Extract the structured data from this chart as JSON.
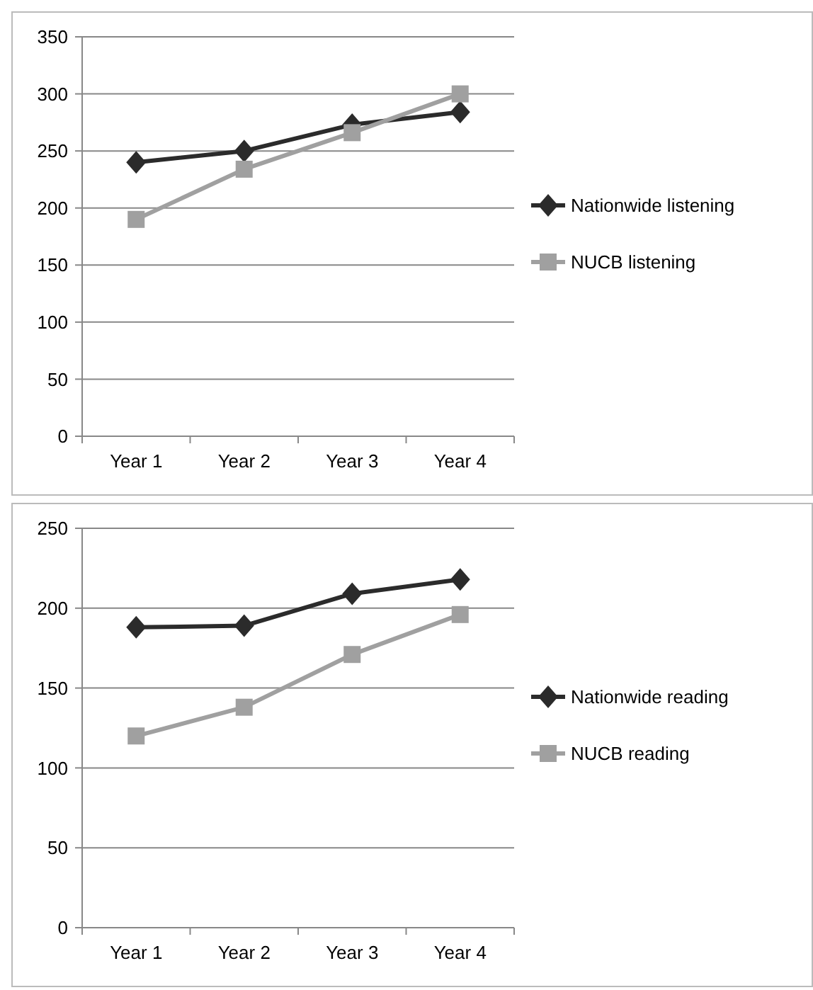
{
  "chart_data": [
    {
      "type": "line",
      "categories": [
        "Year 1",
        "Year 2",
        "Year 3",
        "Year 4"
      ],
      "ylim": [
        0,
        350
      ],
      "yticks": [
        0,
        50,
        100,
        150,
        200,
        250,
        300,
        350
      ],
      "grid": "y",
      "legend": "right",
      "series": [
        {
          "name": "Nationwide listening",
          "color": "#2b2b2b",
          "marker": "diamond",
          "values": [
            240,
            250,
            273,
            284
          ]
        },
        {
          "name": "NUCB listening",
          "color": "#a0a0a0",
          "marker": "square",
          "values": [
            190,
            234,
            266,
            300
          ]
        }
      ]
    },
    {
      "type": "line",
      "categories": [
        "Year 1",
        "Year 2",
        "Year 3",
        "Year 4"
      ],
      "ylim": [
        0,
        250
      ],
      "yticks": [
        0,
        50,
        100,
        150,
        200,
        250
      ],
      "grid": "y",
      "legend": "right",
      "series": [
        {
          "name": "Nationwide reading",
          "color": "#2b2b2b",
          "marker": "diamond",
          "values": [
            188,
            189,
            209,
            218
          ]
        },
        {
          "name": "NUCB reading",
          "color": "#a0a0a0",
          "marker": "square",
          "values": [
            120,
            138,
            171,
            196
          ]
        }
      ]
    }
  ]
}
